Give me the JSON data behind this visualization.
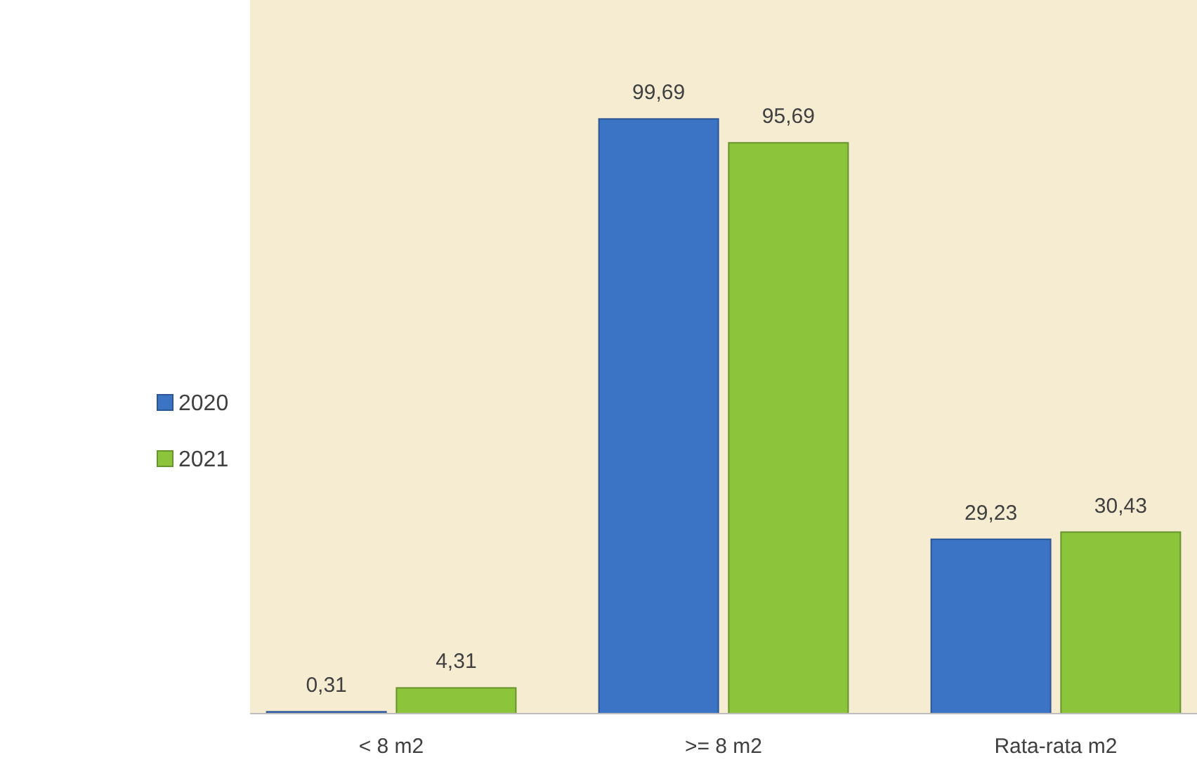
{
  "chart_data": {
    "type": "bar",
    "categories": [
      "< 8 m2",
      ">= 8 m2",
      "Rata-rata m2"
    ],
    "series": [
      {
        "name": "2020",
        "color": "#3b73c5",
        "values": [
          0.31,
          99.69,
          29.23
        ],
        "value_labels": [
          "0,31",
          "99,69",
          "29,23"
        ]
      },
      {
        "name": "2021",
        "color": "#8cc43c",
        "values": [
          4.31,
          95.69,
          30.43
        ],
        "value_labels": [
          "4,31",
          "95,69",
          "30,43"
        ]
      }
    ],
    "legend": "left",
    "grid": false
  }
}
